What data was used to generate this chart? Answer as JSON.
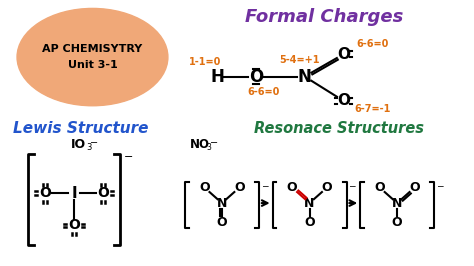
{
  "bg_color": "#ffffff",
  "title_oval_color": "#f0a878",
  "formal_charges_color": "#7030a0",
  "lewis_structure_color": "#2255cc",
  "resonance_color": "#207840",
  "orange_color": "#e07010",
  "black_color": "#111111",
  "red_color": "#cc0000",
  "formal_charges_title": "Formal Charges",
  "lewis_structure_title": "Lewis Structure",
  "resonance_title": "Resonace Structures"
}
